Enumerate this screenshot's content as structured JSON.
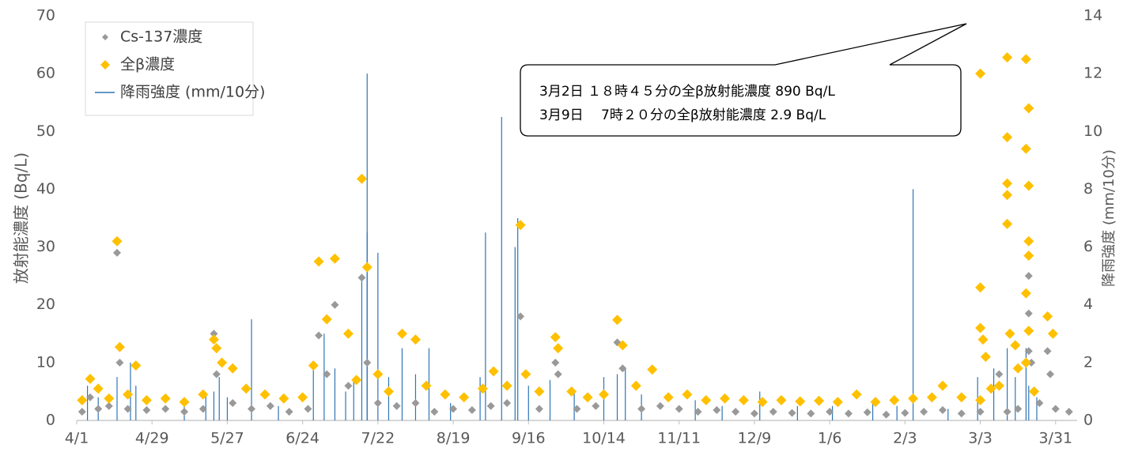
{
  "chart_data": {
    "type": "scatter",
    "y_label": "放射能濃度 (Bq/L)",
    "y2_label": "降雨強度 (mm/10分)",
    "annotations": [
      "3月2日 １８時４５分の全β放射能濃度 890 Bq/L",
      "3月9日　 7時２０分の全β放射能濃度 2.9 Bq/L"
    ],
    "xlim": [
      0,
      372
    ],
    "xticks": [
      {
        "value": 0,
        "label": "4/1"
      },
      {
        "value": 28,
        "label": "4/29"
      },
      {
        "value": 56,
        "label": "5/27"
      },
      {
        "value": 84,
        "label": "6/24"
      },
      {
        "value": 112,
        "label": "7/22"
      },
      {
        "value": 140,
        "label": "8/19"
      },
      {
        "value": 168,
        "label": "9/16"
      },
      {
        "value": 196,
        "label": "10/14"
      },
      {
        "value": 224,
        "label": "11/11"
      },
      {
        "value": 252,
        "label": "12/9"
      },
      {
        "value": 280,
        "label": "1/6"
      },
      {
        "value": 308,
        "label": "2/3"
      },
      {
        "value": 336,
        "label": "3/3"
      },
      {
        "value": 364,
        "label": "3/31"
      }
    ],
    "ylim": [
      0,
      70
    ],
    "yticks": [
      0,
      10,
      20,
      30,
      40,
      50,
      60,
      70
    ],
    "y2lim": [
      0,
      14
    ],
    "y2ticks": [
      0,
      2,
      4,
      6,
      8,
      10,
      12,
      14
    ],
    "grid": false,
    "legend": "upper left",
    "series": [
      {
        "name": "Cs-137濃度",
        "color": "#999999",
        "marker": "diamond",
        "x": [
          2,
          5,
          8,
          12,
          15,
          16,
          19,
          26,
          33,
          40,
          47,
          51,
          52,
          58,
          65,
          72,
          79,
          86,
          90,
          93,
          96,
          101,
          106,
          108,
          112,
          119,
          126,
          133,
          140,
          147,
          154,
          160,
          165,
          172,
          178,
          179,
          186,
          193,
          201,
          203,
          210,
          217,
          224,
          231,
          238,
          245,
          252,
          259,
          266,
          273,
          280,
          287,
          294,
          301,
          308,
          315,
          322,
          329,
          336,
          343,
          346,
          350,
          354,
          354,
          354,
          355,
          358,
          361,
          362,
          364,
          369
        ],
        "values": [
          1.5,
          4,
          2,
          2.5,
          29,
          10,
          2,
          1.8,
          2,
          1.5,
          2,
          15,
          8,
          3,
          2,
          2.5,
          1.5,
          2,
          14.7,
          8,
          20,
          6,
          24.7,
          10,
          3,
          2.5,
          3,
          1.5,
          2,
          1.8,
          2.5,
          3,
          18,
          2,
          10,
          8,
          2,
          2.5,
          13.5,
          9,
          2,
          2.5,
          2,
          1.5,
          1.8,
          1.5,
          1.2,
          1.5,
          1.3,
          1.2,
          1.5,
          1.2,
          1.4,
          1,
          1.3,
          1.5,
          1.8,
          1.2,
          1.5,
          8,
          1.5,
          2,
          25,
          18.5,
          12,
          10,
          3,
          12,
          8,
          2,
          1.5
        ]
      },
      {
        "name": "全β濃度",
        "color": "#ffc000",
        "marker": "diamond",
        "x": [
          2,
          5,
          8,
          12,
          15,
          16,
          19,
          22,
          26,
          33,
          40,
          47,
          51,
          52,
          54,
          58,
          63,
          70,
          77,
          84,
          88,
          90,
          93,
          96,
          101,
          104,
          106,
          108,
          112,
          116,
          121,
          126,
          130,
          137,
          144,
          151,
          155,
          160,
          165,
          167,
          172,
          178,
          179,
          184,
          190,
          196,
          201,
          203,
          208,
          214,
          220,
          227,
          234,
          241,
          248,
          255,
          262,
          269,
          276,
          283,
          290,
          297,
          304,
          311,
          318,
          322,
          329,
          336,
          336,
          336,
          336,
          337,
          338,
          340,
          343,
          346,
          346,
          346,
          346,
          346,
          347,
          349,
          350,
          353,
          353,
          353,
          353,
          354,
          354,
          354,
          354,
          354,
          356,
          361,
          363
        ],
        "values": [
          3.5,
          7.2,
          5.5,
          3.8,
          31,
          12.7,
          4.5,
          9.5,
          3.5,
          3.8,
          3.2,
          4.5,
          14,
          12.5,
          10,
          9,
          5.5,
          4.5,
          3.8,
          4,
          9.5,
          27.5,
          17.5,
          28,
          15,
          7,
          41.8,
          26.5,
          8,
          5,
          15,
          14,
          6,
          4.5,
          4,
          5.5,
          8.5,
          6,
          33.8,
          8,
          5,
          14.4,
          12.5,
          5,
          4,
          4.5,
          17.4,
          13,
          6,
          8.8,
          4,
          4.5,
          3.5,
          3.8,
          3.5,
          3.2,
          3.5,
          3.3,
          3.4,
          3.2,
          4.5,
          3.2,
          3.5,
          3.8,
          4,
          6,
          4,
          3.5,
          60,
          23,
          16,
          14,
          11,
          5.5,
          6,
          62.8,
          49,
          41,
          39,
          34,
          15,
          13,
          9,
          62.5,
          47,
          22,
          10,
          54,
          40.6,
          31,
          28.5,
          15.5,
          5,
          18,
          15
        ]
      },
      {
        "name": "降雨強度 (mm/10分)",
        "color": "#2e75b6",
        "marker": "bar",
        "axis": "y2",
        "x": [
          4,
          8,
          15,
          20,
          22,
          40,
          48,
          51,
          53,
          56,
          65,
          75,
          88,
          92,
          96,
          100,
          103,
          106,
          108,
          108,
          112,
          116,
          121,
          126,
          131,
          139,
          150,
          152,
          158,
          163,
          164,
          168,
          176,
          185,
          196,
          201,
          204,
          210,
          230,
          240,
          254,
          268,
          281,
          296,
          305,
          311,
          324,
          335,
          341,
          346,
          349,
          353,
          354,
          357
        ],
        "values": [
          1.2,
          0.8,
          1.5,
          2,
          1.2,
          0.5,
          0.9,
          1,
          1.5,
          0.8,
          3.5,
          0.5,
          2,
          3,
          1.8,
          1,
          1.4,
          4.9,
          6.5,
          12,
          5.8,
          1.5,
          2.5,
          1.6,
          2.5,
          0.6,
          1.5,
          6.5,
          10.5,
          6,
          7,
          1.2,
          1.4,
          1,
          1.5,
          1.6,
          1.8,
          0.9,
          0.7,
          0.5,
          1,
          0.5,
          0.5,
          0.6,
          0.5,
          8,
          0.4,
          1.5,
          1.8,
          2.5,
          1.5,
          2.5,
          1.2,
          0.8
        ]
      }
    ]
  }
}
